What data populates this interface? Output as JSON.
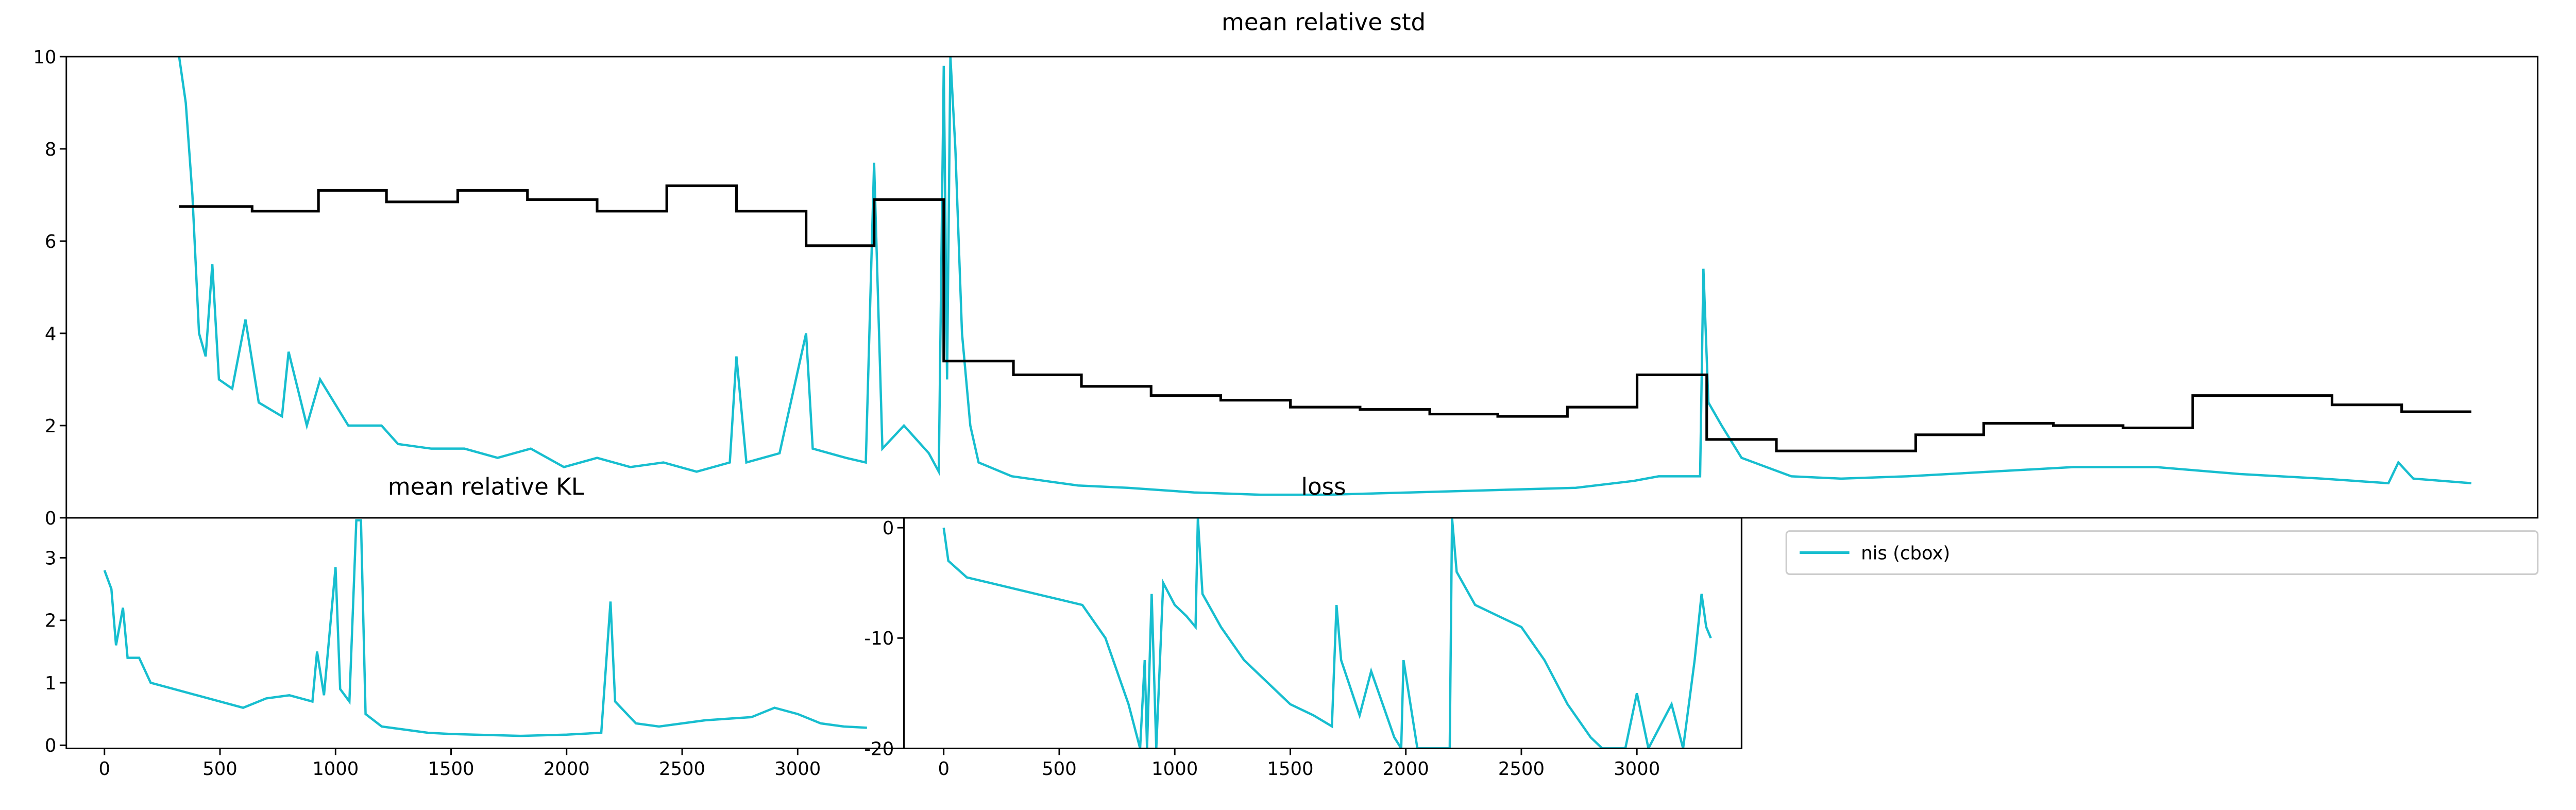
{
  "chart_data": [
    {
      "type": "line",
      "title": "mean relative std",
      "legend": "lower right",
      "xlim": [
        0,
        1490
      ],
      "ylim": [
        0,
        10
      ],
      "yticks": [
        0,
        2,
        4,
        6,
        8,
        10
      ],
      "series": [
        {
          "name": "nis (cbox)",
          "color": "#17becf",
          "x": [
            68,
            72,
            76,
            80,
            84,
            88,
            92,
            100,
            108,
            116,
            130,
            134,
            145,
            153,
            170,
            190,
            200,
            220,
            240,
            260,
            280,
            300,
            320,
            340,
            360,
            380,
            400,
            404,
            410,
            430,
            446,
            450,
            470,
            482,
            487,
            492,
            505,
            520,
            526,
            529,
            531,
            533,
            536,
            540,
            545,
            550,
            570,
            590,
            610,
            640,
            680,
            720,
            760,
            810,
            860,
            910,
            945,
            960,
            985,
            987,
            990,
            998,
            1010,
            1040,
            1070,
            1110,
            1160,
            1210,
            1260,
            1310,
            1360,
            1400,
            1406,
            1415,
            1450
          ],
          "values": [
            10,
            9,
            7,
            4,
            3.5,
            5.5,
            3,
            2.8,
            4.3,
            2.5,
            2.2,
            3.6,
            2,
            3,
            2,
            2,
            1.6,
            1.5,
            1.5,
            1.3,
            1.5,
            1.1,
            1.3,
            1.1,
            1.2,
            1,
            1.2,
            3.5,
            1.2,
            1.4,
            4,
            1.5,
            1.3,
            1.2,
            7.7,
            1.5,
            2,
            1.4,
            1,
            9.8,
            3,
            10,
            8,
            4,
            2,
            1.2,
            0.9,
            0.8,
            0.7,
            0.65,
            0.55,
            0.5,
            0.5,
            0.55,
            0.6,
            0.65,
            0.8,
            0.9,
            0.9,
            5.4,
            2.5,
            2,
            1.3,
            0.9,
            0.85,
            0.9,
            1,
            1.1,
            1.1,
            0.95,
            0.85,
            0.75,
            1.2,
            0.85,
            0.75
          ]
        },
        {
          "color": "#000000",
          "step": true,
          "x": [
            68,
            112,
            152,
            193,
            236,
            278,
            320,
            362,
            404,
            446,
            487,
            529,
            571,
            612,
            654,
            696,
            738,
            780,
            822,
            863,
            905,
            947,
            989,
            1031,
            1073,
            1115,
            1156,
            1198,
            1240,
            1282,
            1324,
            1366,
            1408,
            1450
          ],
          "values": [
            6.75,
            6.65,
            7.1,
            6.85,
            7.1,
            6.9,
            6.65,
            7.2,
            6.65,
            5.9,
            6.9,
            3.4,
            3.1,
            2.85,
            2.65,
            2.55,
            2.4,
            2.35,
            2.25,
            2.2,
            2.4,
            3.1,
            1.7,
            1.45,
            1.45,
            1.8,
            2.05,
            2.0,
            1.95,
            2.65,
            2.65,
            2.45,
            2.3,
            2.3
          ]
        }
      ]
    },
    {
      "type": "line",
      "title": "mean relative KL",
      "xlim": [
        -165,
        3460
      ],
      "ylim": [
        -0.05,
        3.64
      ],
      "yticks": [
        0,
        1,
        2,
        3
      ],
      "xticks": [
        0,
        500,
        1000,
        1500,
        2000,
        2500,
        3000
      ],
      "series": [
        {
          "color": "#17becf",
          "x": [
            0,
            30,
            50,
            80,
            100,
            150,
            200,
            300,
            400,
            500,
            600,
            700,
            800,
            900,
            920,
            950,
            1000,
            1020,
            1060,
            1090,
            1110,
            1130,
            1200,
            1300,
            1400,
            1500,
            1600,
            1800,
            2000,
            2150,
            2190,
            2210,
            2300,
            2400,
            2600,
            2800,
            2900,
            3000,
            3100,
            3200,
            3300
          ],
          "values": [
            2.8,
            2.5,
            1.6,
            2.2,
            1.4,
            1.4,
            1.0,
            0.9,
            0.8,
            0.7,
            0.6,
            0.75,
            0.8,
            0.7,
            1.5,
            0.8,
            2.85,
            0.9,
            0.7,
            3.6,
            3.6,
            0.5,
            0.3,
            0.25,
            0.2,
            0.18,
            0.17,
            0.15,
            0.17,
            0.2,
            2.3,
            0.7,
            0.35,
            0.3,
            0.4,
            0.45,
            0.6,
            0.5,
            0.35,
            0.3,
            0.28
          ]
        }
      ]
    },
    {
      "type": "line",
      "title": "loss",
      "xlim": [
        -172,
        3453
      ],
      "ylim": [
        -20,
        0.9
      ],
      "yticks": [
        -20,
        -10,
        0
      ],
      "xticks": [
        0,
        500,
        1000,
        1500,
        2000,
        2500,
        3000
      ],
      "series": [
        {
          "color": "#17becf",
          "x": [
            0,
            20,
            100,
            200,
            300,
            400,
            500,
            600,
            700,
            750,
            800,
            850,
            870,
            880,
            900,
            920,
            950,
            1000,
            1050,
            1090,
            1100,
            1120,
            1200,
            1300,
            1400,
            1500,
            1600,
            1680,
            1700,
            1720,
            1800,
            1850,
            1900,
            1950,
            1980,
            1990,
            2020,
            2050,
            2190,
            2200,
            2220,
            2300,
            2400,
            2500,
            2600,
            2700,
            2800,
            2850,
            2950,
            3000,
            3050,
            3150,
            3200,
            3250,
            3280,
            3300,
            3320
          ],
          "values": [
            0,
            -3,
            -4.5,
            -5,
            -5.5,
            -6,
            -6.5,
            -7,
            -10,
            -13,
            -16,
            -20,
            -12,
            -20,
            -6,
            -20,
            -5,
            -7,
            -8,
            -9,
            0.9,
            -6,
            -9,
            -12,
            -14,
            -16,
            -17,
            -18,
            -7,
            -12,
            -17,
            -13,
            -16,
            -19,
            -20,
            -12,
            -16,
            -20,
            -20,
            0.9,
            -4,
            -7,
            -8,
            -9,
            -12,
            -16,
            -19,
            -20,
            -20,
            -15,
            -20,
            -16,
            -20,
            -12,
            -6,
            -9,
            -10
          ]
        }
      ]
    }
  ]
}
